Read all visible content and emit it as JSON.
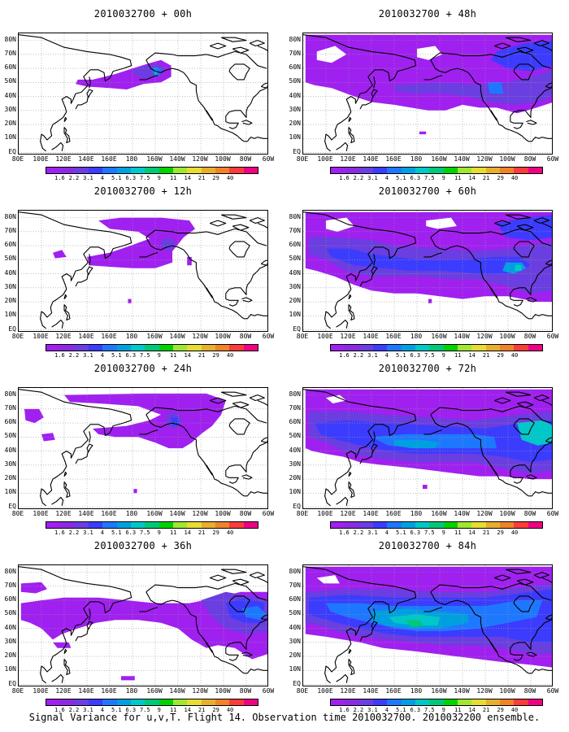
{
  "panels": [
    {
      "title": "2010032700 + 00h",
      "shading": "t00"
    },
    {
      "title": "2010032700 + 48h",
      "shading": "t48"
    },
    {
      "title": "2010032700 + 12h",
      "shading": "t12"
    },
    {
      "title": "2010032700 + 60h",
      "shading": "t60"
    },
    {
      "title": "2010032700 + 24h",
      "shading": "t24"
    },
    {
      "title": "2010032700 + 72h",
      "shading": "t72"
    },
    {
      "title": "2010032700 + 36h",
      "shading": "t36"
    },
    {
      "title": "2010032700 + 84h",
      "shading": "t84"
    }
  ],
  "lat_labels": [
    "80N",
    "70N",
    "60N",
    "50N",
    "40N",
    "30N",
    "20N",
    "10N",
    "EQ"
  ],
  "lon_labels": [
    "80E",
    "100E",
    "120E",
    "140E",
    "160E",
    "180",
    "160W",
    "140W",
    "120W",
    "100W",
    "80W",
    "60W"
  ],
  "colorbar": {
    "labels": [
      "1.6",
      "2.2",
      "3.1",
      "4",
      "5.1",
      "6.3",
      "7.5",
      "9",
      "11",
      "14",
      "21",
      "29",
      "40"
    ],
    "colors": [
      "#a020f0",
      "#8a2be2",
      "#6a3ee0",
      "#3c3cff",
      "#1e78ff",
      "#00a0e0",
      "#00c8c8",
      "#00c878",
      "#00d200",
      "#a0e632",
      "#e6dc32",
      "#e6af2d",
      "#f08228",
      "#fa3c3c",
      "#f00082"
    ]
  },
  "shade_colors": {
    "purple": "#a020f0",
    "violet": "#8a2be2",
    "indigo": "#6a3ee0",
    "blue": "#3c3cff",
    "skyblue": "#1e78ff",
    "teal": "#00a0e0",
    "cyan": "#00c8c8",
    "green": "#00c878"
  },
  "caption": "Signal Variance for u,v,T. Flight 14. Observation time 2010032700. 2010032200 ensemble."
}
